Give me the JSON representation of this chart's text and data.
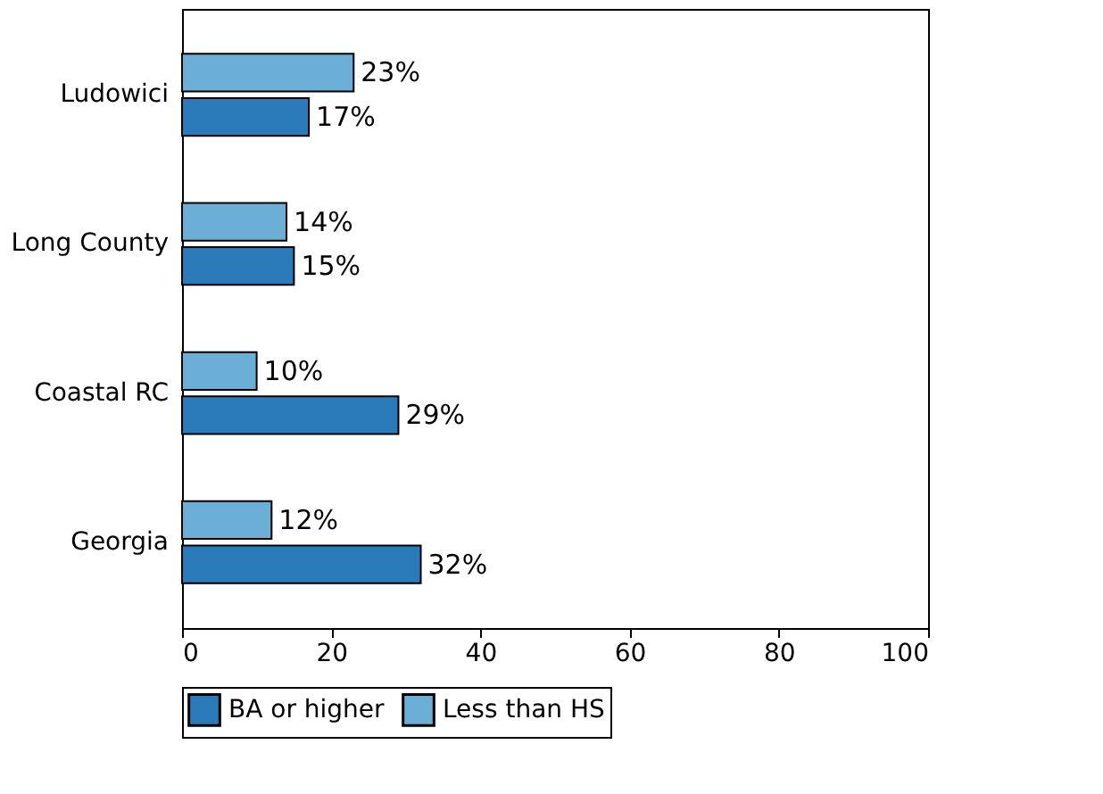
{
  "chart_data": {
    "type": "bar",
    "orientation": "horizontal",
    "categories": [
      "Ludowici",
      "Long County",
      "Coastal RC",
      "Georgia"
    ],
    "series": [
      {
        "name": "BA or higher",
        "color": "#2b7bba",
        "values": [
          17,
          15,
          29,
          32
        ],
        "value_labels": [
          "17%",
          "15%",
          "29%",
          "32%"
        ]
      },
      {
        "name": "Less than HS",
        "color": "#6baed6",
        "values": [
          23,
          14,
          10,
          12
        ],
        "value_labels": [
          "23%",
          "14%",
          "10%",
          "12%"
        ]
      }
    ],
    "xlim": [
      0,
      100
    ],
    "xticks": [
      0,
      20,
      40,
      60,
      80,
      100
    ],
    "grid": false,
    "legend": "bottom"
  }
}
